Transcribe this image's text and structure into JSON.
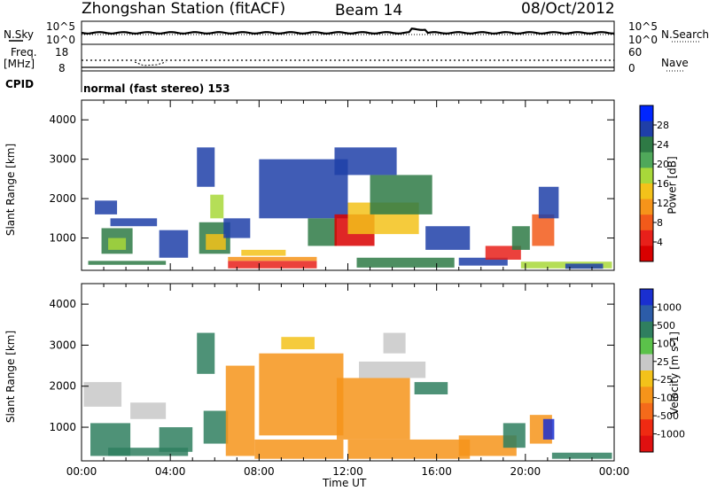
{
  "chart_data": {
    "type": "heatmap",
    "title": "Zhongshan Station (fitACF)",
    "beam": "Beam 14",
    "date": "08/Oct/2012",
    "mode_text": "normal (fast stereo) 153",
    "xlabel": "Time UT",
    "x_ticks": [
      "00:00",
      "04:00",
      "08:00",
      "12:00",
      "16:00",
      "20:00",
      "00:00"
    ],
    "xlim_hours": [
      0,
      24
    ],
    "summary_panels": {
      "nsky_label": "N.Sky",
      "nsearch_label": "N.Search",
      "nsky_ticks": [
        "10^5",
        "10^0"
      ],
      "freq_label_1": "Freq.",
      "freq_label_2": "[MHz]",
      "freq_ticks": [
        "18",
        "8"
      ],
      "nave_label": "Nave",
      "nave_ticks": [
        "60",
        "0"
      ],
      "cpid_label": "CPID"
    },
    "panels": [
      {
        "ylabel": "Slant Range [km]",
        "y_ticks": [
          "4000",
          "3000",
          "2000",
          "1000"
        ],
        "ylim_km": [
          180,
          4500
        ],
        "colorbar_label": "Power [dB]",
        "colorbar_ticks": [
          "28",
          "24",
          "20",
          "16",
          "12",
          "8",
          "4"
        ],
        "colorbar_colors": [
          "#0026ff",
          "#1f3fa8",
          "#2e7a45",
          "#4fa85a",
          "#a8d83a",
          "#f3c21a",
          "#f6941a",
          "#f25a1a",
          "#e8201a",
          "#d90000"
        ]
      },
      {
        "ylabel": "Slant Range [km]",
        "y_ticks": [
          "4000",
          "3000",
          "2000",
          "1000"
        ],
        "ylim_km": [
          180,
          4500
        ],
        "colorbar_label": "Velocity [m s-1]",
        "colorbar_ticks": [
          "1000",
          "500",
          "100",
          "25",
          "-25",
          "-100",
          "-500",
          "-1000"
        ],
        "colorbar_colors": [
          "#1a2fd0",
          "#2c5ca8",
          "#2f7f5f",
          "#5bc24a",
          "#c8c8c8",
          "#f3c21a",
          "#f6941a",
          "#f56a1a",
          "#ef2a12",
          "#e01010"
        ]
      }
    ],
    "regions_power": [
      {
        "t": [
          0.6,
          1.6
        ],
        "r": [
          1600,
          1950
        ],
        "c": "#1f3fa8"
      },
      {
        "t": [
          0.9,
          2.3
        ],
        "r": [
          600,
          1250
        ],
        "c": "#2e7a45"
      },
      {
        "t": [
          1.2,
          2.0
        ],
        "r": [
          700,
          1000
        ],
        "c": "#a8d83a"
      },
      {
        "t": [
          0.3,
          3.8
        ],
        "r": [
          320,
          420
        ],
        "c": "#2e7a45"
      },
      {
        "t": [
          1.3,
          3.4
        ],
        "r": [
          1300,
          1500
        ],
        "c": "#1f3fa8"
      },
      {
        "t": [
          3.5,
          4.8
        ],
        "r": [
          500,
          1200
        ],
        "c": "#1f3fa8"
      },
      {
        "t": [
          5.2,
          6.0
        ],
        "r": [
          2300,
          3300
        ],
        "c": "#1f3fa8"
      },
      {
        "t": [
          5.3,
          6.7
        ],
        "r": [
          600,
          1400
        ],
        "c": "#2e7a45"
      },
      {
        "t": [
          5.6,
          6.5
        ],
        "r": [
          700,
          1100
        ],
        "c": "#f3c21a"
      },
      {
        "t": [
          5.8,
          6.4
        ],
        "r": [
          1500,
          2100
        ],
        "c": "#a8d83a"
      },
      {
        "t": [
          6.6,
          10.6
        ],
        "r": [
          230,
          420
        ],
        "c": "#e8201a"
      },
      {
        "t": [
          6.6,
          10.6
        ],
        "r": [
          420,
          520
        ],
        "c": "#f6941a"
      },
      {
        "t": [
          7.2,
          9.2
        ],
        "r": [
          550,
          700
        ],
        "c": "#f3c21a"
      },
      {
        "t": [
          6.4,
          7.6
        ],
        "r": [
          1000,
          1500
        ],
        "c": "#1f3fa8"
      },
      {
        "t": [
          8.0,
          12.0
        ],
        "r": [
          1500,
          3000
        ],
        "c": "#1f3fa8"
      },
      {
        "t": [
          10.2,
          11.5
        ],
        "r": [
          800,
          1500
        ],
        "c": "#2e7a45"
      },
      {
        "t": [
          11.4,
          13.2
        ],
        "r": [
          800,
          1600
        ],
        "c": "#d90000"
      },
      {
        "t": [
          12.0,
          15.2
        ],
        "r": [
          1100,
          1900
        ],
        "c": "#f3c21a"
      },
      {
        "t": [
          13.0,
          15.8
        ],
        "r": [
          1600,
          2600
        ],
        "c": "#2e7a45"
      },
      {
        "t": [
          11.4,
          14.2
        ],
        "r": [
          2600,
          3300
        ],
        "c": "#1f3fa8"
      },
      {
        "t": [
          12.4,
          16.8
        ],
        "r": [
          250,
          500
        ],
        "c": "#2e7a45"
      },
      {
        "t": [
          15.5,
          17.5
        ],
        "r": [
          700,
          1300
        ],
        "c": "#1f3fa8"
      },
      {
        "t": [
          17.0,
          19.2
        ],
        "r": [
          300,
          500
        ],
        "c": "#1f3fa8"
      },
      {
        "t": [
          18.2,
          19.8
        ],
        "r": [
          450,
          800
        ],
        "c": "#e8201a"
      },
      {
        "t": [
          19.4,
          20.2
        ],
        "r": [
          700,
          1300
        ],
        "c": "#2e7a45"
      },
      {
        "t": [
          20.3,
          21.3
        ],
        "r": [
          800,
          1600
        ],
        "c": "#f25a1a"
      },
      {
        "t": [
          20.6,
          21.5
        ],
        "r": [
          1500,
          2300
        ],
        "c": "#1f3fa8"
      },
      {
        "t": [
          19.8,
          23.9
        ],
        "r": [
          230,
          400
        ],
        "c": "#a8d83a"
      },
      {
        "t": [
          21.8,
          23.5
        ],
        "r": [
          220,
          350
        ],
        "c": "#1f3fa8"
      }
    ],
    "regions_velocity": [
      {
        "t": [
          0.1,
          1.8
        ],
        "r": [
          1500,
          2100
        ],
        "c": "#c8c8c8"
      },
      {
        "t": [
          0.4,
          2.2
        ],
        "r": [
          300,
          1100
        ],
        "c": "#2f7f5f"
      },
      {
        "t": [
          1.2,
          4.8
        ],
        "r": [
          300,
          500
        ],
        "c": "#2f7f5f"
      },
      {
        "t": [
          2.2,
          3.8
        ],
        "r": [
          1200,
          1600
        ],
        "c": "#c8c8c8"
      },
      {
        "t": [
          3.5,
          5.0
        ],
        "r": [
          400,
          1000
        ],
        "c": "#2f7f5f"
      },
      {
        "t": [
          5.2,
          6.0
        ],
        "r": [
          2300,
          3300
        ],
        "c": "#2f7f5f"
      },
      {
        "t": [
          5.5,
          6.6
        ],
        "r": [
          600,
          1400
        ],
        "c": "#2f7f5f"
      },
      {
        "t": [
          6.5,
          7.8
        ],
        "r": [
          300,
          2500
        ],
        "c": "#f6941a"
      },
      {
        "t": [
          7.8,
          11.8
        ],
        "r": [
          230,
          700
        ],
        "c": "#f6941a"
      },
      {
        "t": [
          8.0,
          11.8
        ],
        "r": [
          800,
          2800
        ],
        "c": "#f6941a"
      },
      {
        "t": [
          9.0,
          10.5
        ],
        "r": [
          2900,
          3200
        ],
        "c": "#f3c21a"
      },
      {
        "t": [
          11.5,
          14.8
        ],
        "r": [
          700,
          2200
        ],
        "c": "#f6941a"
      },
      {
        "t": [
          12.5,
          15.5
        ],
        "r": [
          2200,
          2600
        ],
        "c": "#c8c8c8"
      },
      {
        "t": [
          13.6,
          14.6
        ],
        "r": [
          2800,
          3300
        ],
        "c": "#c8c8c8"
      },
      {
        "t": [
          12.0,
          17.5
        ],
        "r": [
          230,
          700
        ],
        "c": "#f6941a"
      },
      {
        "t": [
          15.0,
          16.5
        ],
        "r": [
          1800,
          2100
        ],
        "c": "#2f7f5f"
      },
      {
        "t": [
          17.0,
          19.6
        ],
        "r": [
          300,
          800
        ],
        "c": "#f6941a"
      },
      {
        "t": [
          19.0,
          20.0
        ],
        "r": [
          500,
          1100
        ],
        "c": "#2f7f5f"
      },
      {
        "t": [
          20.2,
          21.2
        ],
        "r": [
          600,
          1300
        ],
        "c": "#f6941a"
      },
      {
        "t": [
          20.8,
          21.3
        ],
        "r": [
          700,
          1200
        ],
        "c": "#1a2fd0"
      },
      {
        "t": [
          21.2,
          23.9
        ],
        "r": [
          230,
          380
        ],
        "c": "#2f7f5f"
      }
    ]
  }
}
